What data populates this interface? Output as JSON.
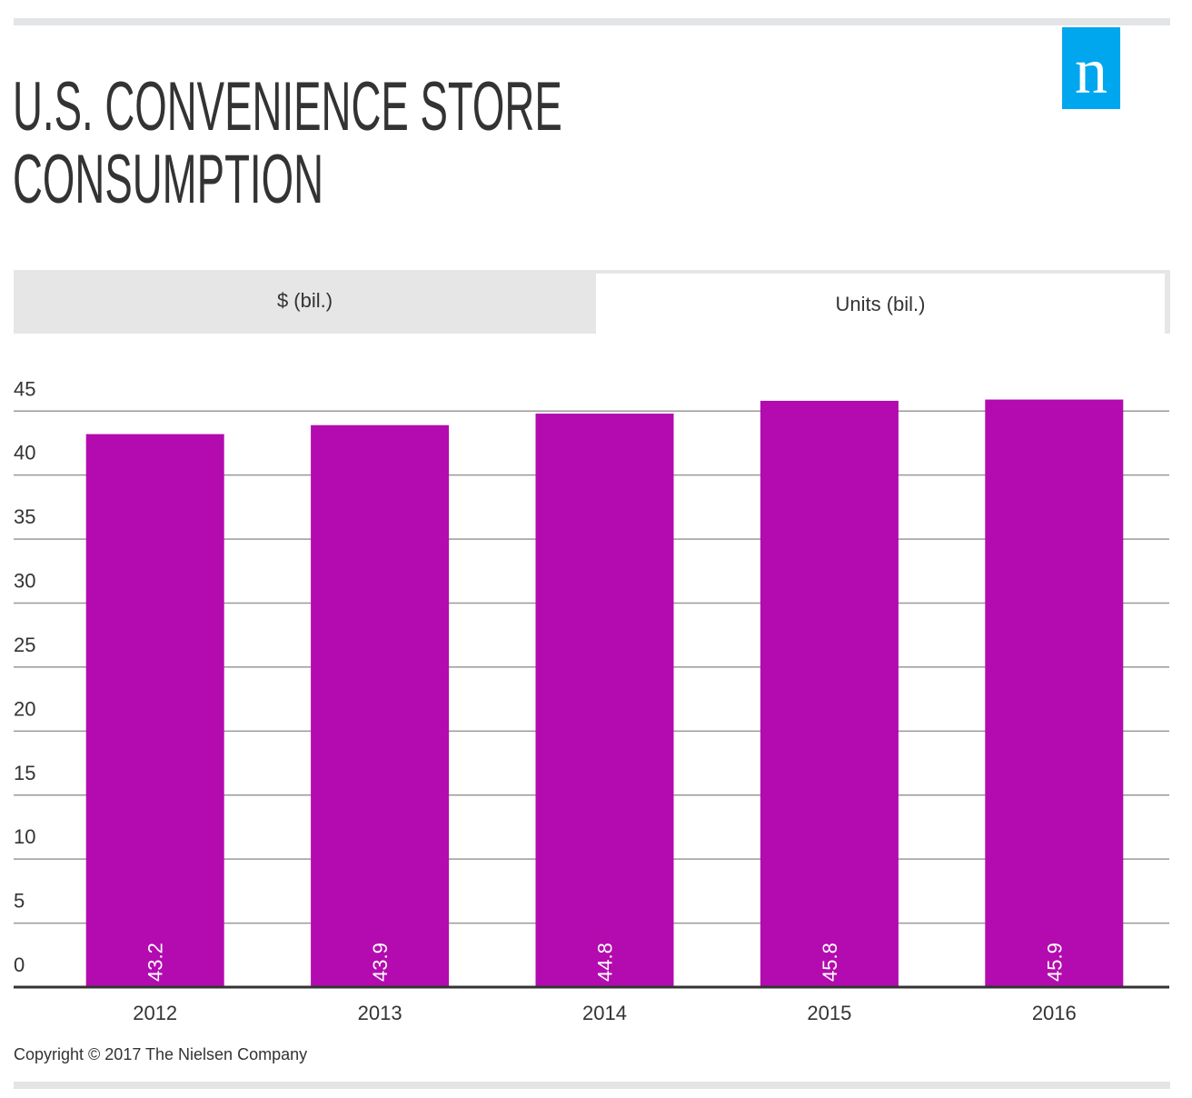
{
  "header": {
    "title": "U.S. CONVENIENCE STORE CONSUMPTION",
    "logo": "n"
  },
  "tabs": [
    "$ (bil.)",
    "Units (bil.)"
  ],
  "chart_data": {
    "type": "bar",
    "categories": [
      "2012",
      "2013",
      "2014",
      "2015",
      "2016"
    ],
    "values": [
      43.2,
      43.9,
      44.8,
      45.8,
      45.9
    ],
    "color": "#b30baf",
    "ylim": [
      0,
      48
    ],
    "yticks": [
      0,
      5,
      10,
      15,
      20,
      25,
      30,
      35,
      40,
      45
    ],
    "grid": true
  },
  "footer": {
    "copyright": "Copyright © 2017 The Nielsen Company"
  }
}
